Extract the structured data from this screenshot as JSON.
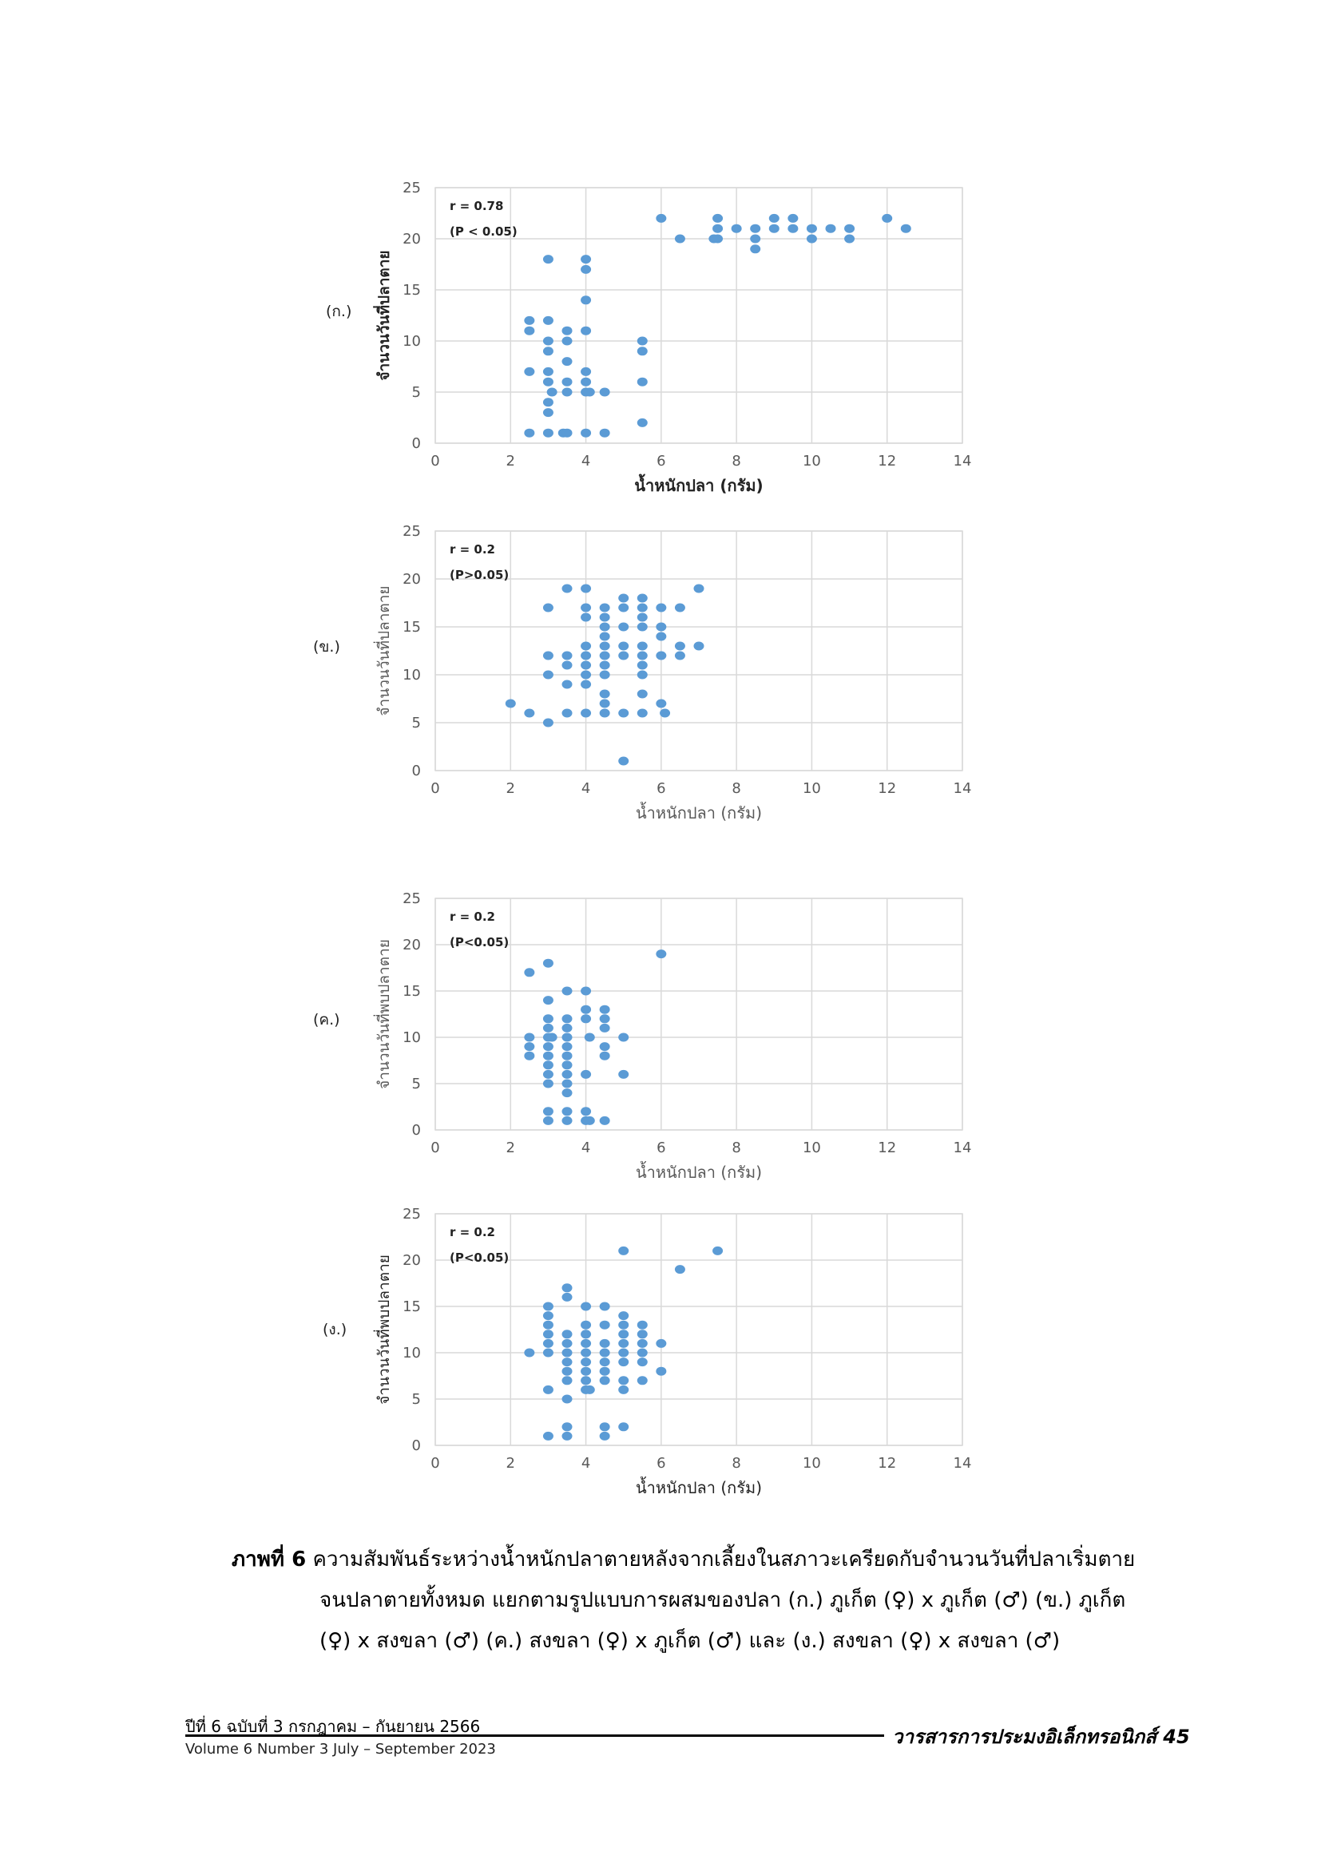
{
  "figures": [
    {
      "panel_label": "(ก.)",
      "r_text": "r = 0.78",
      "p_text": "(P < 0.05)",
      "chart_data": {
        "type": "scatter",
        "xlabel": "น้ำหนักปลา (กรัม)",
        "ylabel": "จำนวนวันที่ปลาตาย",
        "xlim": [
          0,
          14
        ],
        "ylim": [
          0,
          25
        ],
        "x_ticks": [
          "0",
          "2",
          "4",
          "6",
          "8",
          "10",
          "12",
          "14"
        ],
        "y_ticks": [
          "0",
          "5",
          "10",
          "15",
          "20",
          "25"
        ],
        "grid": true,
        "points": [
          [
            2.5,
            12
          ],
          [
            2.5,
            11
          ],
          [
            2.5,
            7
          ],
          [
            2.5,
            1
          ],
          [
            3,
            18
          ],
          [
            3,
            12
          ],
          [
            3,
            10
          ],
          [
            3,
            9
          ],
          [
            3,
            7
          ],
          [
            3,
            6
          ],
          [
            3,
            4
          ],
          [
            3,
            3
          ],
          [
            3,
            1
          ],
          [
            3.1,
            5
          ],
          [
            3.4,
            1
          ],
          [
            3.5,
            1
          ],
          [
            3.5,
            11
          ],
          [
            3.5,
            10
          ],
          [
            3.5,
            8
          ],
          [
            3.5,
            6
          ],
          [
            3.5,
            5
          ],
          [
            4,
            18
          ],
          [
            4,
            17
          ],
          [
            4,
            14
          ],
          [
            4,
            11
          ],
          [
            4,
            7
          ],
          [
            4,
            6
          ],
          [
            4,
            5
          ],
          [
            4.1,
            5
          ],
          [
            4,
            1
          ],
          [
            4.5,
            5
          ],
          [
            4.5,
            1
          ],
          [
            5.5,
            10
          ],
          [
            5.5,
            9
          ],
          [
            5.5,
            6
          ],
          [
            5.5,
            2
          ],
          [
            6,
            22
          ],
          [
            6.5,
            20
          ],
          [
            7.5,
            22
          ],
          [
            7.5,
            21
          ],
          [
            7.5,
            20
          ],
          [
            7.4,
            20
          ],
          [
            8,
            21
          ],
          [
            8.5,
            21
          ],
          [
            8.5,
            20
          ],
          [
            8.5,
            19
          ],
          [
            9,
            22
          ],
          [
            9,
            21
          ],
          [
            9.5,
            22
          ],
          [
            9.5,
            21
          ],
          [
            10,
            21
          ],
          [
            10,
            20
          ],
          [
            10.5,
            21
          ],
          [
            11,
            21
          ],
          [
            11,
            20
          ],
          [
            12,
            22
          ],
          [
            12.5,
            21
          ]
        ]
      }
    },
    {
      "panel_label": "(ข.)",
      "r_text": "r = 0.2",
      "p_text": "(P>0.05)",
      "chart_data": {
        "type": "scatter",
        "xlabel": "น้ำหนักปลา (กรัม)",
        "ylabel": "จำนวนวันที่ปลาตาย",
        "xlim": [
          0,
          14
        ],
        "ylim": [
          0,
          25
        ],
        "x_ticks": [
          "0",
          "2",
          "4",
          "6",
          "8",
          "10",
          "12",
          "14"
        ],
        "y_ticks": [
          "0",
          "5",
          "10",
          "15",
          "20",
          "25"
        ],
        "grid": true,
        "points": [
          [
            2,
            7
          ],
          [
            2.5,
            6
          ],
          [
            3,
            17
          ],
          [
            3,
            12
          ],
          [
            3,
            10
          ],
          [
            3,
            5
          ],
          [
            3.5,
            19
          ],
          [
            3.5,
            12
          ],
          [
            3.5,
            11
          ],
          [
            3.5,
            9
          ],
          [
            3.5,
            6
          ],
          [
            4,
            19
          ],
          [
            4,
            17
          ],
          [
            4,
            16
          ],
          [
            4,
            13
          ],
          [
            4,
            12
          ],
          [
            4,
            11
          ],
          [
            4,
            10
          ],
          [
            4,
            9
          ],
          [
            4,
            6
          ],
          [
            4.5,
            17
          ],
          [
            4.5,
            16
          ],
          [
            4.5,
            15
          ],
          [
            4.5,
            14
          ],
          [
            4.5,
            13
          ],
          [
            4.5,
            12
          ],
          [
            4.5,
            11
          ],
          [
            4.5,
            10
          ],
          [
            4.5,
            8
          ],
          [
            4.5,
            7
          ],
          [
            4.5,
            6
          ],
          [
            5,
            18
          ],
          [
            5,
            17
          ],
          [
            5,
            15
          ],
          [
            5,
            13
          ],
          [
            5,
            12
          ],
          [
            5,
            6
          ],
          [
            5,
            1
          ],
          [
            5.5,
            18
          ],
          [
            5.5,
            17
          ],
          [
            5.5,
            16
          ],
          [
            5.5,
            15
          ],
          [
            5.5,
            13
          ],
          [
            5.5,
            12
          ],
          [
            5.5,
            11
          ],
          [
            5.5,
            10
          ],
          [
            5.5,
            8
          ],
          [
            5.5,
            6
          ],
          [
            6,
            17
          ],
          [
            6,
            15
          ],
          [
            6,
            14
          ],
          [
            6,
            12
          ],
          [
            6,
            7
          ],
          [
            6.1,
            6
          ],
          [
            6.5,
            17
          ],
          [
            6.5,
            13
          ],
          [
            6.5,
            12
          ],
          [
            7,
            19
          ],
          [
            7,
            13
          ]
        ]
      }
    },
    {
      "panel_label": "(ค.)",
      "r_text": "r = 0.2",
      "p_text": "(P<0.05)",
      "chart_data": {
        "type": "scatter",
        "xlabel": "น้ำหนักปลา (กรัม)",
        "ylabel": "จำนวนวันที่พบปลาตาย",
        "xlim": [
          0,
          14
        ],
        "ylim": [
          0,
          25
        ],
        "x_ticks": [
          "0",
          "2",
          "4",
          "6",
          "8",
          "10",
          "12",
          "14"
        ],
        "y_ticks": [
          "0",
          "5",
          "10",
          "15",
          "20",
          "25"
        ],
        "grid": true,
        "points": [
          [
            2.5,
            17
          ],
          [
            2.5,
            10
          ],
          [
            2.5,
            9
          ],
          [
            2.5,
            8
          ],
          [
            3,
            18
          ],
          [
            3,
            14
          ],
          [
            3,
            12
          ],
          [
            3,
            11
          ],
          [
            3,
            10
          ],
          [
            3,
            9
          ],
          [
            3,
            8
          ],
          [
            3,
            7
          ],
          [
            3,
            6
          ],
          [
            3,
            5
          ],
          [
            3,
            2
          ],
          [
            3,
            1
          ],
          [
            3.1,
            10
          ],
          [
            3.5,
            15
          ],
          [
            3.5,
            12
          ],
          [
            3.5,
            11
          ],
          [
            3.5,
            10
          ],
          [
            3.5,
            9
          ],
          [
            3.5,
            8
          ],
          [
            3.5,
            7
          ],
          [
            3.5,
            6
          ],
          [
            3.5,
            5
          ],
          [
            3.5,
            4
          ],
          [
            3.5,
            2
          ],
          [
            3.5,
            1
          ],
          [
            4,
            15
          ],
          [
            4,
            13
          ],
          [
            4,
            12
          ],
          [
            4,
            6
          ],
          [
            4,
            2
          ],
          [
            4,
            1
          ],
          [
            4.1,
            10
          ],
          [
            4.1,
            1
          ],
          [
            4.5,
            13
          ],
          [
            4.5,
            12
          ],
          [
            4.5,
            11
          ],
          [
            4.5,
            9
          ],
          [
            4.5,
            8
          ],
          [
            4.5,
            1
          ],
          [
            5,
            10
          ],
          [
            5,
            6
          ],
          [
            6,
            19
          ]
        ]
      }
    },
    {
      "panel_label": "(ง.)",
      "r_text": "r = 0.2",
      "p_text": "(P<0.05)",
      "chart_data": {
        "type": "scatter",
        "xlabel": "น้ำหนักปลา (กรัม)",
        "ylabel": "จำนวนวันที่พบปลาตาย",
        "xlim": [
          0,
          14
        ],
        "ylim": [
          0,
          25
        ],
        "x_ticks": [
          "0",
          "2",
          "4",
          "6",
          "8",
          "10",
          "12",
          "14"
        ],
        "y_ticks": [
          "0",
          "5",
          "10",
          "15",
          "20",
          "25"
        ],
        "grid": true,
        "points": [
          [
            2.5,
            10
          ],
          [
            3,
            15
          ],
          [
            3,
            14
          ],
          [
            3,
            13
          ],
          [
            3,
            12
          ],
          [
            3,
            11
          ],
          [
            3,
            10
          ],
          [
            3,
            6
          ],
          [
            3,
            1
          ],
          [
            3.5,
            17
          ],
          [
            3.5,
            16
          ],
          [
            3.5,
            12
          ],
          [
            3.5,
            11
          ],
          [
            3.5,
            10
          ],
          [
            3.5,
            9
          ],
          [
            3.5,
            8
          ],
          [
            3.5,
            7
          ],
          [
            3.5,
            5
          ],
          [
            3.5,
            2
          ],
          [
            3.5,
            1
          ],
          [
            4,
            15
          ],
          [
            4,
            13
          ],
          [
            4,
            12
          ],
          [
            4,
            11
          ],
          [
            4,
            10
          ],
          [
            4,
            9
          ],
          [
            4,
            8
          ],
          [
            4,
            7
          ],
          [
            4,
            6
          ],
          [
            4.1,
            6
          ],
          [
            4.5,
            15
          ],
          [
            4.5,
            13
          ],
          [
            4.5,
            11
          ],
          [
            4.5,
            10
          ],
          [
            4.5,
            9
          ],
          [
            4.5,
            8
          ],
          [
            4.5,
            7
          ],
          [
            4.5,
            2
          ],
          [
            4.5,
            1
          ],
          [
            5,
            21
          ],
          [
            5,
            14
          ],
          [
            5,
            13
          ],
          [
            5,
            12
          ],
          [
            5,
            11
          ],
          [
            5,
            10
          ],
          [
            5,
            9
          ],
          [
            5,
            7
          ],
          [
            5,
            6
          ],
          [
            5,
            2
          ],
          [
            5.5,
            13
          ],
          [
            5.5,
            12
          ],
          [
            5.5,
            11
          ],
          [
            5.5,
            10
          ],
          [
            5.5,
            9
          ],
          [
            5.5,
            7
          ],
          [
            6,
            11
          ],
          [
            6,
            8
          ],
          [
            6.5,
            19
          ],
          [
            7.5,
            21
          ]
        ]
      }
    }
  ],
  "caption": {
    "label": "ภาพที่ 6",
    "line1": "ความสัมพันธ์ระหว่างน้ำหนักปลาตายหลังจากเลี้ยงในสภาวะเครียดกับจำนวนวันที่ปลาเริ่มตาย",
    "line2": "จนปลาตายทั้งหมด แยกตามรูปแบบการผสมของปลา (ก.) ภูเก็ต (♀) x ภูเก็ต (♂) (ข.) ภูเก็ต",
    "line3": "(♀) x สงขลา (♂) (ค.) สงขลา (♀) x ภูเก็ต (♂) และ (ง.) สงขลา (♀) x สงขลา (♂)"
  },
  "footer": {
    "issue_th": "ปีที่ 6 ฉบับที่ 3 กรกฎาคม – กันยายน 2566",
    "issue_en": "Volume 6 Number 3 July – September 2023",
    "journal": "วารสารการประมงอิเล็กทรอนิกส์",
    "page": "45"
  },
  "colors": {
    "marker": "#5b9bd5",
    "grid": "#d9d9d9",
    "tick_text": "#595959"
  }
}
